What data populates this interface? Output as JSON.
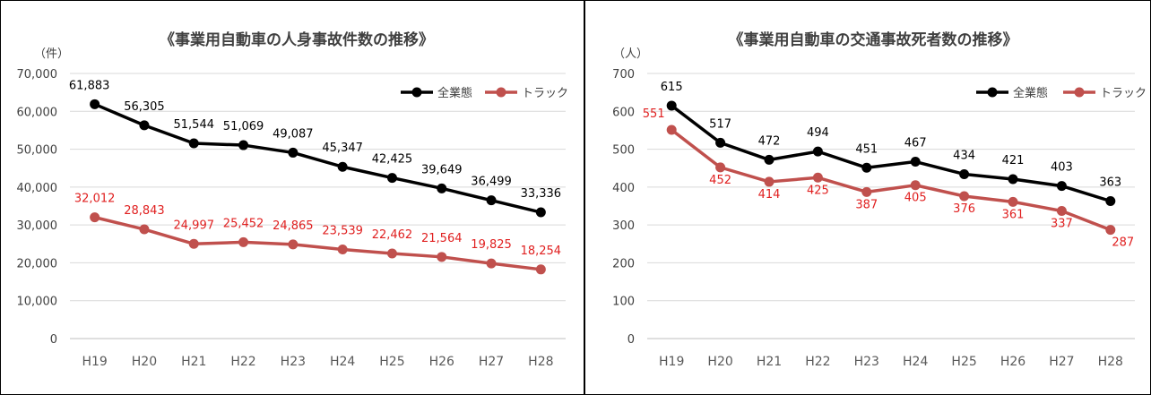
{
  "chart_data": [
    {
      "type": "line",
      "title": "《事業用自動車の人身事故件数の推移》",
      "unit_label": "（件）",
      "ylim": [
        0,
        70000
      ],
      "yticks": [
        "0",
        "10,000",
        "20,000",
        "30,000",
        "40,000",
        "50,000",
        "60,000",
        "70,000"
      ],
      "categories": [
        "H19",
        "H20",
        "H21",
        "H22",
        "H23",
        "H24",
        "H25",
        "H26",
        "H27",
        "H28"
      ],
      "grid": true,
      "legend_position": "top-right",
      "series": [
        {
          "name": "全業態",
          "color": "#000000",
          "values": [
            61883,
            56305,
            51544,
            51069,
            49087,
            45347,
            42425,
            39649,
            36499,
            33336
          ],
          "labels": [
            "61,883",
            "56,305",
            "51,544",
            "51,069",
            "49,087",
            "45,347",
            "42,425",
            "39,649",
            "36,499",
            "33,336"
          ]
        },
        {
          "name": "トラック",
          "color": "#C0504D",
          "label_color": "#E02020",
          "values": [
            32012,
            28843,
            24997,
            25452,
            24865,
            23539,
            22462,
            21564,
            19825,
            18254
          ],
          "labels": [
            "32,012",
            "28,843",
            "24,997",
            "25,452",
            "24,865",
            "23,539",
            "22,462",
            "21,564",
            "19,825",
            "18,254"
          ]
        }
      ]
    },
    {
      "type": "line",
      "title": "《事業用自動車の交通事故死者数の推移》",
      "unit_label": "（人）",
      "ylim": [
        0,
        700
      ],
      "yticks": [
        "0",
        "100",
        "200",
        "300",
        "400",
        "500",
        "600",
        "700"
      ],
      "categories": [
        "H19",
        "H20",
        "H21",
        "H22",
        "H23",
        "H24",
        "H25",
        "H26",
        "H27",
        "H28"
      ],
      "grid": true,
      "legend_position": "top-right",
      "series": [
        {
          "name": "全業態",
          "color": "#000000",
          "values": [
            615,
            517,
            472,
            494,
            451,
            467,
            434,
            421,
            403,
            363
          ],
          "labels": [
            "615",
            "517",
            "472",
            "494",
            "451",
            "467",
            "434",
            "421",
            "403",
            "363"
          ]
        },
        {
          "name": "トラック",
          "color": "#C0504D",
          "label_color": "#E02020",
          "values": [
            551,
            452,
            414,
            425,
            387,
            405,
            376,
            361,
            337,
            287
          ],
          "labels": [
            "551",
            "452",
            "414",
            "425",
            "387",
            "405",
            "376",
            "361",
            "337",
            "287"
          ]
        }
      ]
    }
  ]
}
